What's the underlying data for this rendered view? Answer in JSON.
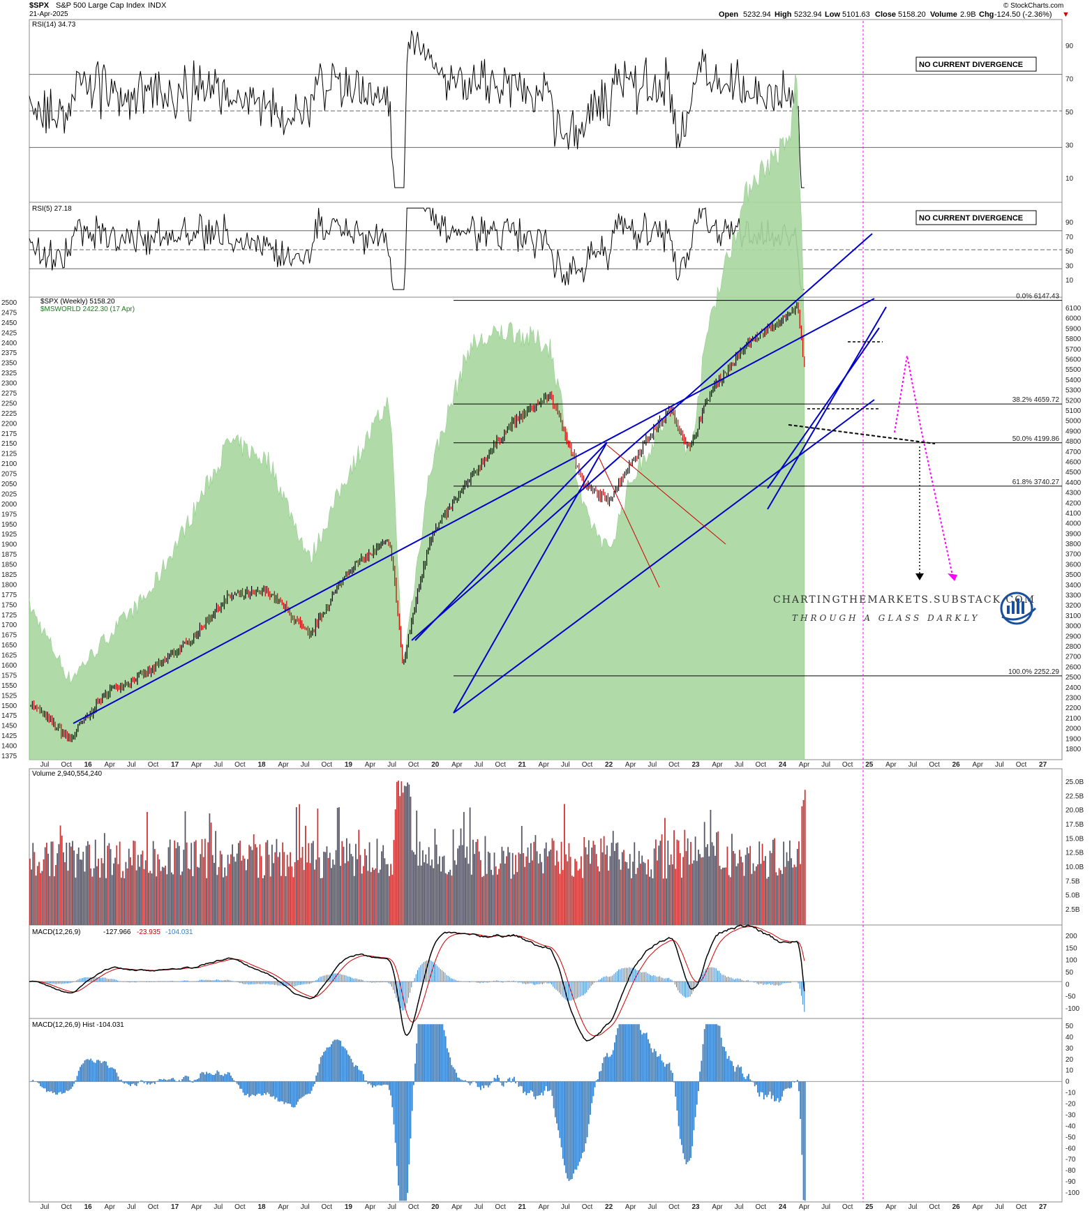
{
  "header": {
    "symbol": "$SPX",
    "name": "S&P 500 Large Cap Index",
    "exchange": "INDX",
    "date": "21-Apr-2025",
    "open_label": "Open",
    "open": "5232.94",
    "high_label": "High",
    "high": "5232.94",
    "low_label": "Low",
    "low": "5101.63",
    "close_label": "Close",
    "close": "5158.20",
    "volume_label": "Volume",
    "volume": "2.9B",
    "chg_label": "Chg",
    "chg": "-124.50 (-2.36%)",
    "chg_arrow": "▼",
    "brand": "© StockCharts.com"
  },
  "rsi14": {
    "label": "RSI(14) 34.73",
    "note": "NO CURRENT DIVERGENCE",
    "ticks": [
      "90",
      "70",
      "50",
      "30",
      "10"
    ]
  },
  "rsi5": {
    "label": "RSI(5) 27.18",
    "note": "NO CURRENT DIVERGENCE",
    "ticks": [
      "90",
      "70",
      "50",
      "30",
      "10"
    ]
  },
  "main": {
    "legend1": "$SPX (Weekly) 5158.20",
    "legend2": "$MSWORLD 2422.30 (17 Apr)",
    "left_ticks": [
      "2500",
      "2475",
      "2450",
      "2425",
      "2400",
      "2375",
      "2350",
      "2325",
      "2300",
      "2275",
      "2250",
      "2225",
      "2200",
      "2175",
      "2150",
      "2125",
      "2100",
      "2075",
      "2050",
      "2025",
      "2000",
      "1975",
      "1950",
      "1925",
      "1900",
      "1875",
      "1850",
      "1825",
      "1800",
      "1775",
      "1750",
      "1725",
      "1700",
      "1675",
      "1650",
      "1625",
      "1600",
      "1575",
      "1550",
      "1525",
      "1500",
      "1475",
      "1450",
      "1425",
      "1400",
      "1375"
    ],
    "right_ticks": [
      "6100",
      "6000",
      "5900",
      "5800",
      "5700",
      "5600",
      "5500",
      "5400",
      "5300",
      "5200",
      "5100",
      "5000",
      "4900",
      "4800",
      "4700",
      "4600",
      "4500",
      "4400",
      "4300",
      "4200",
      "4100",
      "4000",
      "3900",
      "3800",
      "3700",
      "3600",
      "3500",
      "3400",
      "3300",
      "3200",
      "3100",
      "3000",
      "2900",
      "2800",
      "2700",
      "2600",
      "2500",
      "2400",
      "2300",
      "2200",
      "2100",
      "2000",
      "1900",
      "1800"
    ],
    "fib": [
      {
        "label": "0.0% 6147.43",
        "value": 6147.43
      },
      {
        "label": "38.2% 4659.72",
        "value": 4659.72
      },
      {
        "label": "50.0% 4199.86",
        "value": 4199.86
      },
      {
        "label": "61.8% 3740.27",
        "value": 3740.27
      },
      {
        "label": "100.0% 2252.29",
        "value": 2252.29
      }
    ],
    "watermark1": "CHARTINGTHEMARKETS.SUBSTACK.COM",
    "watermark2": "THROUGH A GLASS DARKLY"
  },
  "x_axis": [
    "Jul",
    "Oct",
    "16",
    "Apr",
    "Jul",
    "Oct",
    "17",
    "Apr",
    "Jul",
    "Oct",
    "18",
    "Apr",
    "Jul",
    "Oct",
    "19",
    "Apr",
    "Jul",
    "Oct",
    "20",
    "Apr",
    "Jul",
    "Oct",
    "21",
    "Apr",
    "Jul",
    "Oct",
    "22",
    "Apr",
    "Jul",
    "Oct",
    "23",
    "Apr",
    "Jul",
    "Oct",
    "24",
    "Apr",
    "Jul",
    "Oct",
    "25",
    "Apr",
    "Jul",
    "Oct",
    "26",
    "Apr",
    "Jul",
    "Oct",
    "27"
  ],
  "volume": {
    "label": "Volume 2,940,554,240",
    "ticks": [
      "25.0B",
      "22.5B",
      "20.0B",
      "17.5B",
      "15.0B",
      "12.5B",
      "10.0B",
      "7.5B",
      "5.0B",
      "2.5B"
    ]
  },
  "macd": {
    "label": "MACD(12,26,9)",
    "v1": "-127.966",
    "v2": "-23.935",
    "v3": "-104.031",
    "ticks": [
      "200",
      "150",
      "100",
      "50",
      "0",
      "-50",
      "-100"
    ]
  },
  "hist": {
    "label": "MACD(12,26,9) Hist -104.031",
    "ticks": [
      "50",
      "40",
      "30",
      "20",
      "10",
      "0",
      "-10",
      "-20",
      "-30",
      "-40",
      "-50",
      "-60",
      "-70",
      "-80",
      "-90",
      "-100"
    ]
  },
  "colors": {
    "up": "#000000",
    "down": "#cc0000",
    "area": "#a8d8a0",
    "trend": "#0000cc",
    "magenta": "#ff00ff",
    "hist": "#3380cc"
  },
  "chart_data": {
    "type": "line",
    "title": "$SPX S&P 500 Large Cap Index INDX",
    "xlabel": "",
    "ylabel": "",
    "x": [
      "2015-07",
      "2016-01",
      "2016-07",
      "2017-01",
      "2017-07",
      "2018-01",
      "2018-07",
      "2019-01",
      "2019-07",
      "2020-01",
      "2020-03",
      "2020-07",
      "2021-01",
      "2021-07",
      "2022-01",
      "2022-06",
      "2022-10",
      "2023-01",
      "2023-07",
      "2023-10",
      "2024-01",
      "2024-07",
      "2025-01",
      "2025-02",
      "2025-04"
    ],
    "series": [
      {
        "name": "$SPX (Weekly)",
        "values": [
          2100,
          1900,
          2170,
          2275,
          2470,
          2790,
          2820,
          2500,
          3000,
          3230,
          2300,
          3250,
          3800,
          4400,
          4770,
          3750,
          3600,
          3970,
          4590,
          4120,
          4800,
          5500,
          5900,
          6100,
          5158
        ]
      },
      {
        "name": "$MSWORLD",
        "values": [
          1750,
          1570,
          1680,
          1780,
          1960,
          2150,
          2100,
          1860,
          2080,
          2250,
          1600,
          2080,
          2380,
          2420,
          2380,
          1980,
          1880,
          2050,
          2220,
          2120,
          2450,
          2780,
          2880,
          3050,
          2422
        ]
      }
    ],
    "ylim": [
      1375,
      2500
    ],
    "y2lim": [
      1800,
      6200
    ]
  }
}
